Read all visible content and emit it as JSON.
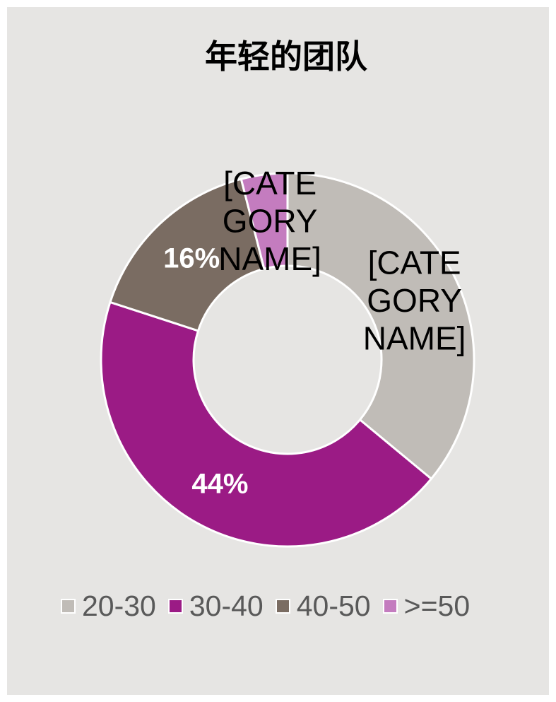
{
  "chart_data": {
    "type": "pie",
    "donut": true,
    "title": "年轻的团队",
    "categories": [
      "20-30",
      "30-40",
      "40-50",
      ">=50"
    ],
    "values": [
      36,
      44,
      16,
      4
    ],
    "data_labels": [
      [
        "[CATE",
        "GORY",
        "NAME]"
      ],
      [
        "44%"
      ],
      [
        "16%"
      ],
      [
        "[CATE",
        "GORY",
        "NAME]"
      ]
    ],
    "colors": [
      "#c0bcb7",
      "#9b1b85",
      "#7a6c62",
      "#c47cbf"
    ],
    "legend": "bottom",
    "background": "#e6e5e3"
  }
}
